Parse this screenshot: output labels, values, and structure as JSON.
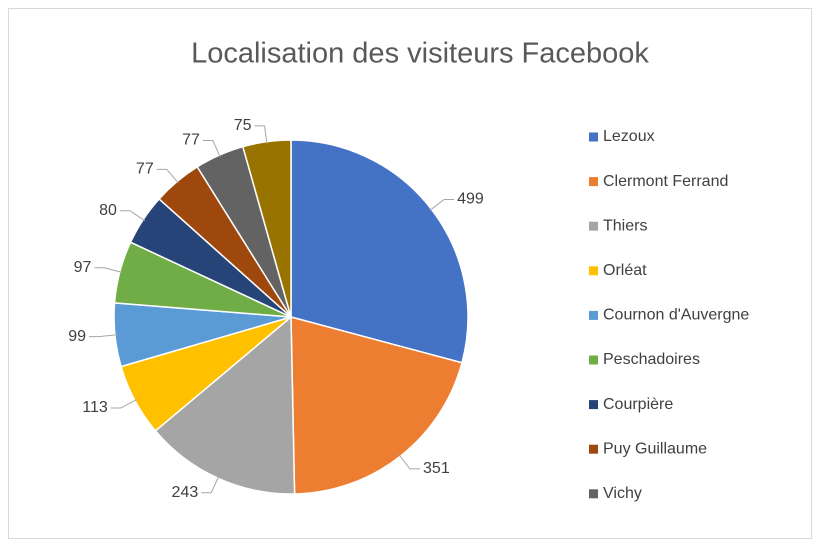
{
  "chart_data": {
    "type": "pie",
    "title": "Localisation des visiteurs Facebook",
    "categories": [
      "Lezoux",
      "Clermont Ferrand",
      "Thiers",
      "Orléat",
      "Cournon d'Auvergne",
      "Peschadoires",
      "Courpière",
      "Puy Guillaume",
      "Vichy",
      null
    ],
    "values": [
      499,
      351,
      243,
      113,
      99,
      97,
      80,
      77,
      77,
      75
    ],
    "colors": [
      "#4472c4",
      "#ed7d31",
      "#a5a5a5",
      "#ffc000",
      "#5b9bd5",
      "#70ad47",
      "#264478",
      "#9e480e",
      "#636363",
      "#997300"
    ],
    "legend": "right"
  }
}
